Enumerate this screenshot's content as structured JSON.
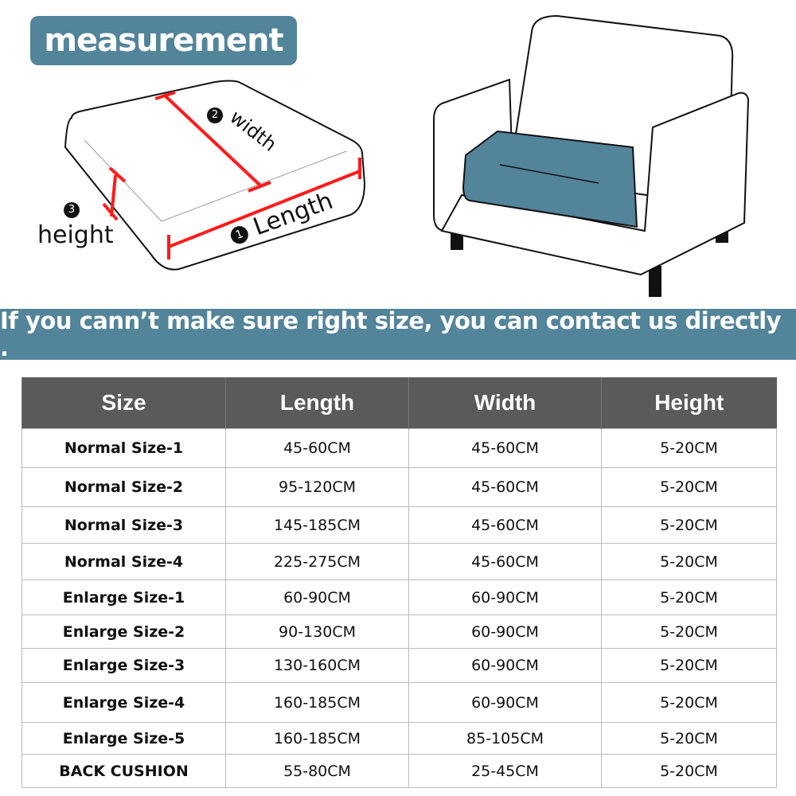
{
  "title": "measurement",
  "diagram": {
    "width_label": "width",
    "length_label": "Length",
    "height_label": "height",
    "width_num": "2",
    "length_num": "1",
    "height_num": "3",
    "line_color": "#ff1a1a",
    "cushion_color": "#52849a"
  },
  "banner": "If you cann’t make sure right size,  you can contact us directly .",
  "table": {
    "headers": [
      "Size",
      "Length",
      "Width",
      "Height"
    ],
    "rows": [
      [
        "Normal Size-1",
        "45-60CM",
        "45-60CM",
        "5-20CM"
      ],
      [
        "Normal Size-2",
        "95-120CM",
        "45-60CM",
        "5-20CM"
      ],
      [
        "Normal Size-3",
        "145-185CM",
        "45-60CM",
        "5-20CM"
      ],
      [
        "Normal Size-4",
        "225-275CM",
        "45-60CM",
        "5-20CM"
      ],
      [
        "Enlarge Size-1",
        "60-90CM",
        "60-90CM",
        "5-20CM"
      ],
      [
        "Enlarge Size-2",
        "90-130CM",
        "60-90CM",
        "5-20CM"
      ],
      [
        "Enlarge Size-3",
        "130-160CM",
        "60-90CM",
        "5-20CM"
      ],
      [
        "Enlarge Size-4",
        "160-185CM",
        "60-90CM",
        "5-20CM"
      ],
      [
        "Enlarge Size-5",
        "160-185CM",
        "85-105CM",
        "5-20CM"
      ],
      [
        "BACK CUSHION",
        "55-80CM",
        "25-45CM",
        "5-20CM"
      ]
    ]
  }
}
